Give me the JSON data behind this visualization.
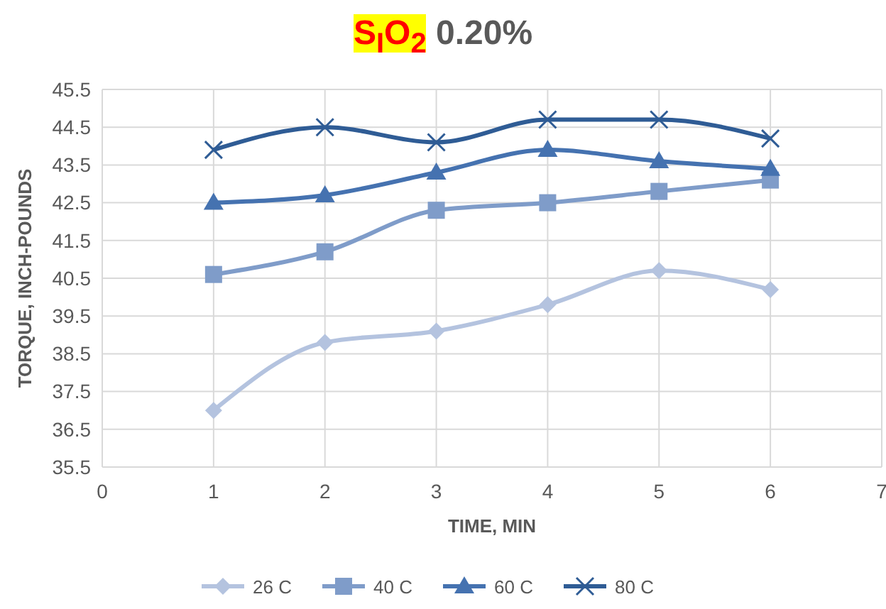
{
  "chart_data": {
    "type": "line",
    "title": "S$_{I}$O$_{2}$ 0.20%",
    "xlabel": "TIME, MIN",
    "ylabel": "TORQUE, INCH-POUNDS",
    "x": [
      1,
      2,
      3,
      4,
      5,
      6
    ],
    "xlim": [
      0,
      7
    ],
    "xticks": [
      0,
      1,
      2,
      3,
      4,
      5,
      6,
      7
    ],
    "ylim": [
      35.5,
      45.5
    ],
    "yticks": [
      35.5,
      36.5,
      37.5,
      38.5,
      39.5,
      40.5,
      41.5,
      42.5,
      43.5,
      44.5,
      45.5
    ],
    "grid": true,
    "legend": "bottom",
    "series": [
      {
        "name": "26 C",
        "color": "#b4c3df",
        "marker": "diamond",
        "values": [
          37.0,
          38.8,
          39.1,
          39.8,
          40.7,
          40.2
        ]
      },
      {
        "name": "40 C",
        "color": "#7f9cc9",
        "marker": "square",
        "values": [
          40.6,
          41.2,
          42.3,
          42.5,
          42.8,
          43.1
        ]
      },
      {
        "name": "60 C",
        "color": "#4572b0",
        "marker": "triangle",
        "values": [
          42.5,
          42.7,
          43.3,
          43.9,
          43.6,
          43.4
        ]
      },
      {
        "name": "80 C",
        "color": "#2f5c95",
        "marker": "cross",
        "values": [
          43.9,
          44.5,
          44.1,
          44.7,
          44.7,
          44.2
        ]
      }
    ]
  }
}
